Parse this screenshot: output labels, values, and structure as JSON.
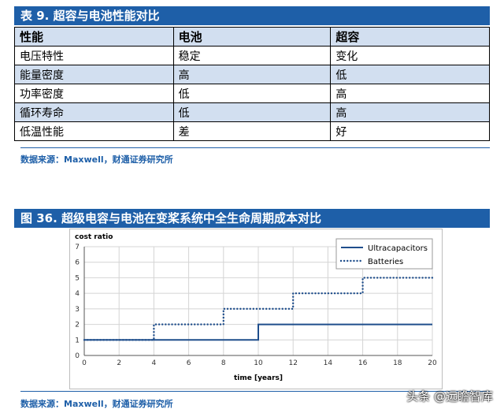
{
  "table1": {
    "title": "表 9. 超容与电池性能对比",
    "headers": [
      "性能",
      "电池",
      "超容"
    ],
    "rows": [
      [
        "电压特性",
        "稳定",
        "变化"
      ],
      [
        "能量密度",
        "高",
        "低"
      ],
      [
        "功率密度",
        "低",
        "高"
      ],
      [
        "循环寿命",
        "低",
        "高"
      ],
      [
        "低温性能",
        "差",
        "好"
      ]
    ],
    "source": "数据来源：Maxwell，财通证券研究所"
  },
  "figure": {
    "title": "图 36. 超级电容与电池在变桨系统中全生命周期成本对比",
    "source": "数据来源：Maxwell，财通证券研究所"
  },
  "watermark": "头条 @远瞻智库",
  "colors": {
    "accent": "#1e5fa8",
    "header_fill": "#d2dff0"
  },
  "chart_data": {
    "type": "line",
    "title": "",
    "ylabel": "cost ratio",
    "xlabel": "time [years]",
    "xlim": [
      0,
      20
    ],
    "ylim": [
      0,
      7
    ],
    "xticks": [
      0,
      2,
      4,
      6,
      8,
      10,
      12,
      14,
      16,
      18,
      20
    ],
    "yticks": [
      0,
      1,
      2,
      3,
      4,
      5,
      6,
      7
    ],
    "grid": true,
    "legend_position": "top-right",
    "series": [
      {
        "name": "Ultracapacitors",
        "style": "solid",
        "color": "#1f4e8c",
        "x": [
          0,
          10,
          10,
          20
        ],
        "y": [
          1,
          1,
          2,
          2
        ]
      },
      {
        "name": "Batteries",
        "style": "dotted",
        "color": "#1f4e8c",
        "x": [
          0,
          4,
          4,
          8,
          8,
          12,
          12,
          16,
          16,
          20
        ],
        "y": [
          1,
          1,
          2,
          2,
          3,
          3,
          4,
          4,
          5,
          5
        ]
      }
    ]
  }
}
